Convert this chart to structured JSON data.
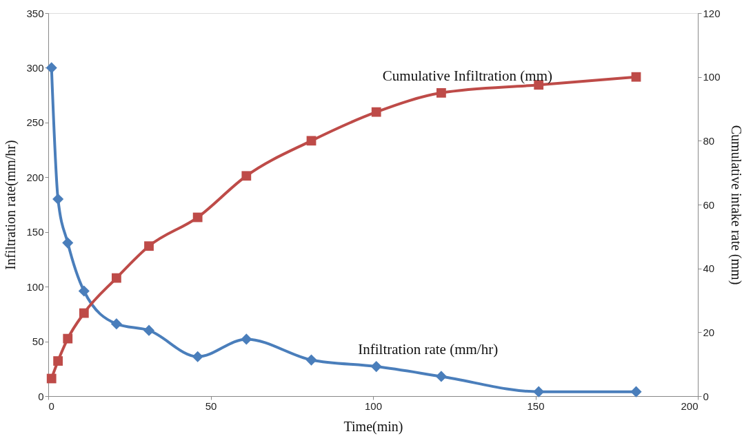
{
  "chart_data": {
    "type": "line",
    "xlabel": "Time(min)",
    "ylabel": "Infiltration  rate(mm/hr)",
    "y2label": "Cumulative  intake  rate (mm)",
    "xlim": [
      0,
      200
    ],
    "xticks": [
      0,
      50,
      100,
      150,
      200
    ],
    "ylim": [
      0,
      350
    ],
    "yticks": [
      0,
      50,
      100,
      150,
      200,
      250,
      300,
      350
    ],
    "y2lim": [
      0,
      120
    ],
    "y2ticks": [
      0,
      20,
      40,
      60,
      80,
      100,
      120
    ],
    "grid": false,
    "series": [
      {
        "name": "Infiltration  rate (mm/hr)",
        "color": "#4a7ebb",
        "marker": "diamond",
        "x": [
          1,
          3,
          6,
          11,
          21,
          31,
          46,
          61,
          81,
          101,
          121,
          151,
          181
        ],
        "values": [
          300,
          180,
          140,
          96,
          66,
          60,
          36,
          52,
          33,
          27,
          18,
          4,
          4
        ]
      },
      {
        "name": "Cumulative  Infiltration  (mm)",
        "color": "#be4b48",
        "marker": "square",
        "axis": "y2",
        "x": [
          1,
          3,
          6,
          11,
          21,
          31,
          46,
          61,
          81,
          101,
          121,
          151,
          181
        ],
        "values": [
          5.5,
          11,
          18,
          26,
          37,
          47,
          56,
          69,
          80,
          89,
          95,
          97.5,
          100
        ]
      }
    ]
  }
}
